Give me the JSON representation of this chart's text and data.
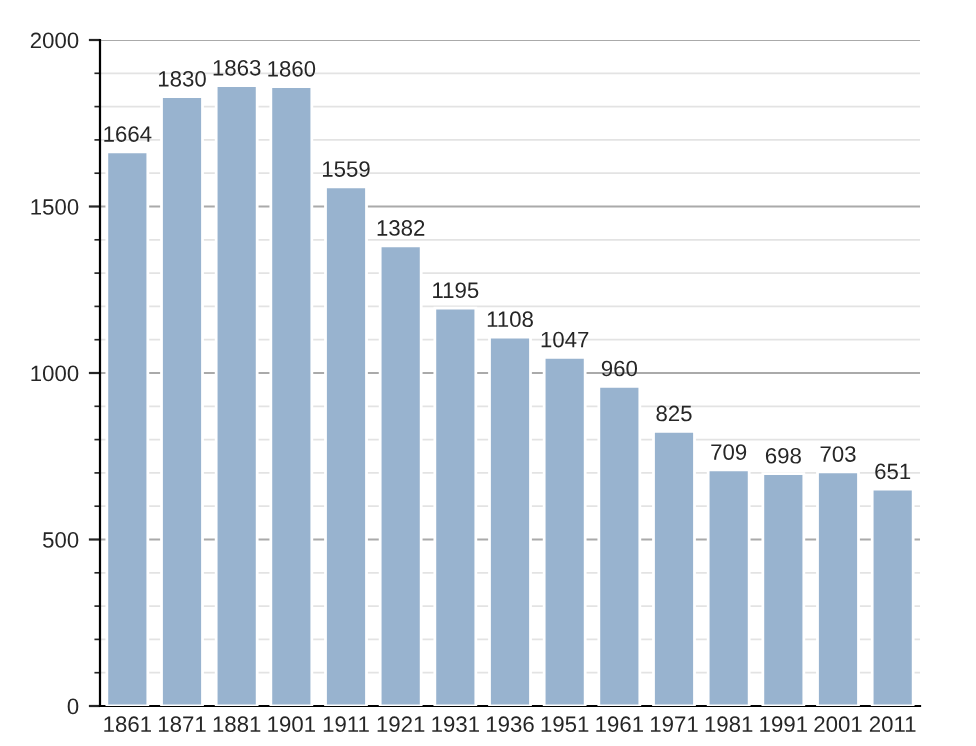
{
  "chart_data": {
    "type": "bar",
    "categories": [
      "1861",
      "1871",
      "1881",
      "1901",
      "1911",
      "1921",
      "1931",
      "1936",
      "1951",
      "1961",
      "1971",
      "1981",
      "1991",
      "2001",
      "2011"
    ],
    "values": [
      1664,
      1830,
      1863,
      1860,
      1559,
      1382,
      1195,
      1108,
      1047,
      960,
      825,
      709,
      698,
      703,
      651
    ],
    "color": "#98b3cf",
    "ylim": [
      0,
      2000
    ],
    "yticks": [
      0,
      500,
      1000,
      1500,
      2000
    ],
    "grid": "y",
    "data_labels": true
  }
}
